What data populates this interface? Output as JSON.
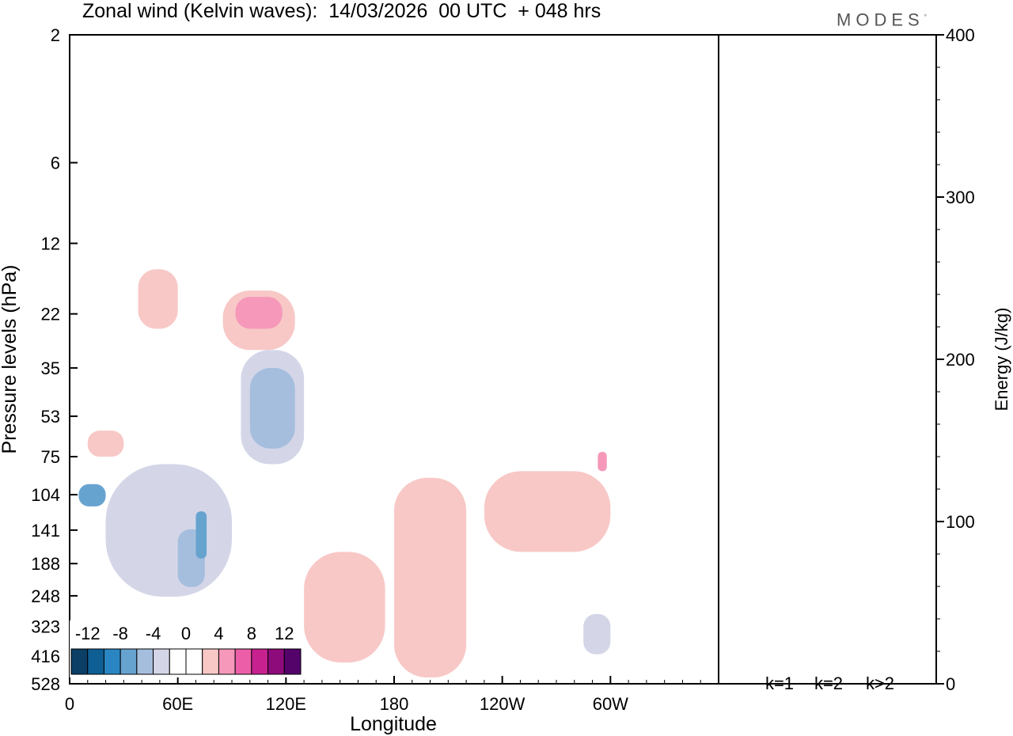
{
  "title": "Zonal wind (Kelvin waves):  14/03/2026  00 UTC  + 048 hrs",
  "logo": {
    "text": "MODES",
    "mark": "°"
  },
  "chart_data": [
    {
      "type": "heatmap",
      "title": "Zonal wind (Kelvin waves):  14/03/2026  00 UTC  + 048 hrs",
      "xlabel": "Longitude",
      "ylabel": "Pressure levels (hPa)",
      "x_ticks": [
        "0",
        "60E",
        "120E",
        "180",
        "120W",
        "60W"
      ],
      "y_ticks": [
        "2",
        "6",
        "12",
        "22",
        "35",
        "53",
        "75",
        "104",
        "141",
        "188",
        "248",
        "323",
        "416",
        "528"
      ],
      "y_scale": "log",
      "colorbar": {
        "labels": [
          "-12",
          "-8",
          "-4",
          "0",
          "4",
          "8",
          "12"
        ],
        "colors": [
          "#0b3f66",
          "#0f5f94",
          "#2a86c2",
          "#67a3cf",
          "#a6bedd",
          "#d4d6e8",
          "#ffffff",
          "#ffffff",
          "#f8c8c6",
          "#f598ba",
          "#ec5fa8",
          "#c7218f",
          "#8e0b7c",
          "#54036b"
        ]
      },
      "regions": [
        {
          "sign": "positive",
          "level": 1,
          "lon": [
            10,
            30
          ],
          "p": [
            75,
            60
          ]
        },
        {
          "sign": "positive",
          "level": 1,
          "lon": [
            38,
            60
          ],
          "p": [
            25,
            15
          ]
        },
        {
          "sign": "positive",
          "level": 1,
          "lon": [
            85,
            125
          ],
          "p": [
            30,
            18
          ]
        },
        {
          "sign": "positive",
          "level": 2,
          "lon": [
            92,
            118
          ],
          "p": [
            25,
            19
          ]
        },
        {
          "sign": "positive",
          "level": 1,
          "lon": [
            130,
            175
          ],
          "p": [
            170,
            440
          ]
        },
        {
          "sign": "positive",
          "level": 1,
          "lon": [
            180,
            220
          ],
          "p": [
            90,
            500
          ]
        },
        {
          "sign": "positive",
          "level": 1,
          "lon": [
            230,
            300
          ],
          "p": [
            85,
            170
          ]
        },
        {
          "sign": "positive",
          "level": 2,
          "lon": [
            293,
            298
          ],
          "p": [
            85,
            72
          ]
        },
        {
          "sign": "negative",
          "level": 1,
          "lon": [
            20,
            90
          ],
          "p": [
            80,
            250
          ]
        },
        {
          "sign": "negative",
          "level": 2,
          "lon": [
            60,
            75
          ],
          "p": [
            140,
            230
          ]
        },
        {
          "sign": "negative",
          "level": 3,
          "lon": [
            70,
            76
          ],
          "p": [
            120,
            180
          ]
        },
        {
          "sign": "negative",
          "level": 1,
          "lon": [
            95,
            130
          ],
          "p": [
            30,
            80
          ]
        },
        {
          "sign": "negative",
          "level": 2,
          "lon": [
            100,
            125
          ],
          "p": [
            35,
            70
          ]
        },
        {
          "sign": "negative",
          "level": 3,
          "lon": [
            5,
            20
          ],
          "p": [
            95,
            115
          ]
        },
        {
          "sign": "negative",
          "level": 1,
          "lon": [
            285,
            300
          ],
          "p": [
            290,
            410
          ]
        }
      ]
    },
    {
      "type": "bar",
      "categories": [
        "k=1",
        "k=2",
        "k>2"
      ],
      "values": [
        0,
        0,
        0
      ],
      "ylabel": "Energy (J/kg)",
      "ylim": [
        0,
        400
      ],
      "y_ticks": [
        "0",
        "100",
        "200",
        "300",
        "400"
      ]
    }
  ]
}
